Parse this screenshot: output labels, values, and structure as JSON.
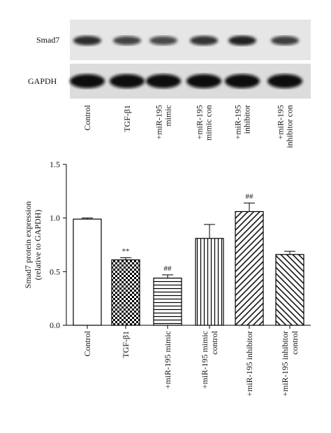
{
  "blot": {
    "rows": [
      "Smad7",
      "GAPDH"
    ],
    "lanes": [
      [
        "Control"
      ],
      [
        "TGF-β1"
      ],
      [
        "+miR-195",
        "mimic"
      ],
      [
        "+miR-195",
        "mimic con"
      ],
      [
        "+miR-195",
        "inhibitor"
      ],
      [
        "+miR-195",
        "inhibitor con"
      ]
    ]
  },
  "chart_data": {
    "type": "bar",
    "y_label": [
      "Smad7 protein expression",
      "(relative to GAPDH)"
    ],
    "categories": [
      [
        "Control"
      ],
      [
        "TGF-β1"
      ],
      [
        "+miR-195 mimic"
      ],
      [
        "+miR-195 mimic",
        "control"
      ],
      [
        "+miR-195 inhibitor"
      ],
      [
        "+miR-195 inhibitor",
        "control"
      ]
    ],
    "values": [
      0.99,
      0.61,
      0.44,
      0.81,
      1.06,
      0.66
    ],
    "errors": [
      0.01,
      0.02,
      0.03,
      0.13,
      0.08,
      0.03
    ],
    "significance": [
      null,
      "**",
      "##",
      null,
      "##",
      null
    ],
    "patterns": [
      "none",
      "checker",
      "horizontal",
      "vertical",
      "diagonal-up",
      "diagonal-down"
    ],
    "color": "#000000",
    "ylim": [
      0,
      1.5
    ],
    "yticks": [
      {
        "value": 0,
        "label": "0.0"
      },
      {
        "value": 0.5,
        "label": "0.5"
      },
      {
        "value": 1,
        "label": "1.0"
      },
      {
        "value": 1.5,
        "label": "1.5"
      }
    ]
  }
}
